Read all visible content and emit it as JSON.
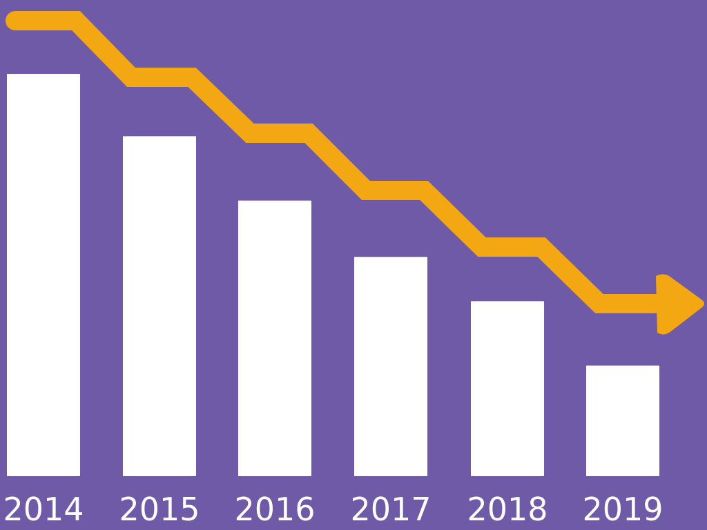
{
  "colors": {
    "background": "#6e5aa6",
    "bar": "#ffffff",
    "trend_arrow": "#f3a712",
    "tick_label": "#ffffff"
  },
  "chart_data": {
    "type": "bar",
    "categories": [
      "2014",
      "2015",
      "2016",
      "2017",
      "2018",
      "2019"
    ],
    "values": [
      100,
      84.5,
      68.5,
      54.5,
      43.5,
      27.5
    ],
    "ylim": [
      0,
      100
    ],
    "grid": false,
    "legend": "none",
    "annotations": [
      {
        "type": "decreasing-trend-arrow",
        "icon": "down-step-arrow-icon"
      }
    ]
  }
}
